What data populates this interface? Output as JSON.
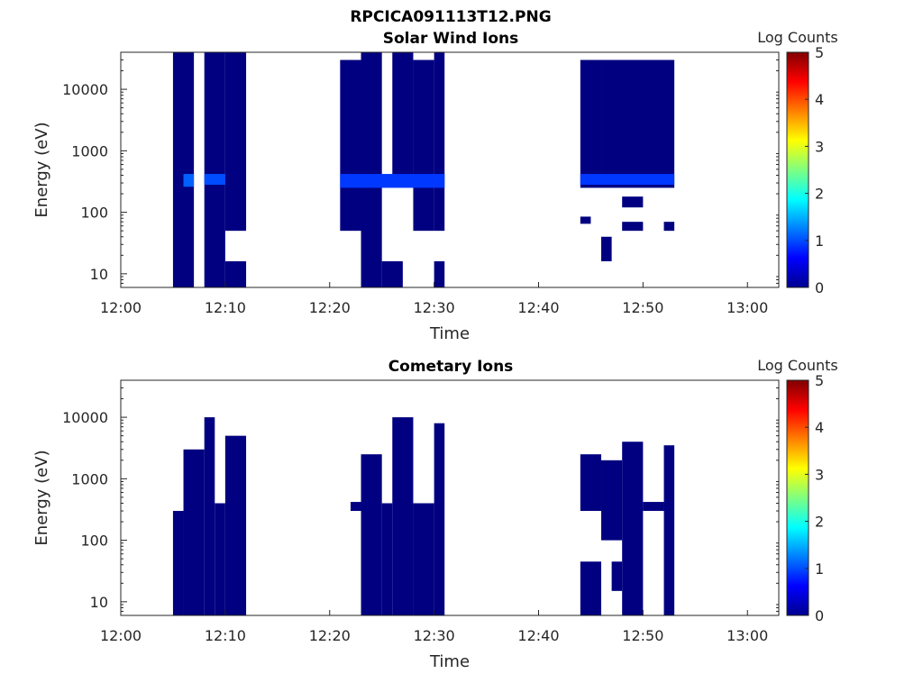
{
  "figure_title": "RPCICA091113T12.PNG",
  "chart_data": [
    {
      "type": "heatmap",
      "title": "Solar Wind Ions",
      "xlabel": "Time",
      "ylabel": "Energy (eV)",
      "x_ticks": [
        "12:00",
        "12:10",
        "12:20",
        "12:30",
        "12:40",
        "12:50",
        "13:00"
      ],
      "xlim": [
        "12:00",
        "13:03"
      ],
      "y_scale": "log",
      "y_ticks": [
        "10",
        "100",
        "1000",
        "10000"
      ],
      "ylim": [
        6,
        40000
      ],
      "colorbar": {
        "label": "Log Counts",
        "range": [
          0,
          5
        ],
        "ticks": [
          "0",
          "1",
          "2",
          "3",
          "4",
          "5"
        ],
        "colormap": "jet"
      },
      "cells": [
        {
          "t0": "12:05",
          "t1": "12:07",
          "e0": 6,
          "e1": 40000,
          "value": 0
        },
        {
          "t0": "12:08",
          "t1": "12:10",
          "e0": 6,
          "e1": 40000,
          "value": 0
        },
        {
          "t0": "12:10",
          "t1": "12:12",
          "e0": 6,
          "e1": 16,
          "value": 0
        },
        {
          "t0": "12:10",
          "t1": "12:12",
          "e0": 50,
          "e1": 40000,
          "value": 0
        },
        {
          "t0": "12:06",
          "t1": "12:07",
          "e0": 260,
          "e1": 420,
          "value": 1.1
        },
        {
          "t0": "12:08",
          "t1": "12:10",
          "e0": 280,
          "e1": 420,
          "value": 1.0
        },
        {
          "t0": "12:21",
          "t1": "12:23",
          "e0": 50,
          "e1": 30000,
          "value": 0
        },
        {
          "t0": "12:23",
          "t1": "12:25",
          "e0": 6,
          "e1": 40000,
          "value": 0
        },
        {
          "t0": "12:25",
          "t1": "12:27",
          "e0": 6,
          "e1": 16,
          "value": 0
        },
        {
          "t0": "12:26",
          "t1": "12:28",
          "e0": 400,
          "e1": 40000,
          "value": 0
        },
        {
          "t0": "12:28",
          "t1": "12:30",
          "e0": 50,
          "e1": 30000,
          "value": 0
        },
        {
          "t0": "12:30",
          "t1": "12:31",
          "e0": 6,
          "e1": 16,
          "value": 0
        },
        {
          "t0": "12:30",
          "t1": "12:31",
          "e0": 50,
          "e1": 40000,
          "value": 0
        },
        {
          "t0": "12:21",
          "t1": "12:31",
          "e0": 250,
          "e1": 420,
          "value": 0.9
        },
        {
          "t0": "12:44",
          "t1": "12:46",
          "e0": 250,
          "e1": 30000,
          "value": 0
        },
        {
          "t0": "12:44",
          "t1": "12:45",
          "e0": 65,
          "e1": 85,
          "value": 0
        },
        {
          "t0": "12:46",
          "t1": "12:47",
          "e0": 16,
          "e1": 40,
          "value": 0
        },
        {
          "t0": "12:46",
          "t1": "12:53",
          "e0": 250,
          "e1": 30000,
          "value": 0
        },
        {
          "t0": "12:48",
          "t1": "12:50",
          "e0": 50,
          "e1": 70,
          "value": 0
        },
        {
          "t0": "12:48",
          "t1": "12:50",
          "e0": 120,
          "e1": 180,
          "value": 0
        },
        {
          "t0": "12:52",
          "t1": "12:53",
          "e0": 50,
          "e1": 70,
          "value": 0
        },
        {
          "t0": "12:44",
          "t1": "12:53",
          "e0": 280,
          "e1": 420,
          "value": 0.9
        }
      ]
    },
    {
      "type": "heatmap",
      "title": "Cometary Ions",
      "xlabel": "Time",
      "ylabel": "Energy (eV)",
      "x_ticks": [
        "12:00",
        "12:10",
        "12:20",
        "12:30",
        "12:40",
        "12:50",
        "13:00"
      ],
      "xlim": [
        "12:00",
        "13:03"
      ],
      "y_scale": "log",
      "y_ticks": [
        "10",
        "100",
        "1000",
        "10000"
      ],
      "ylim": [
        6,
        40000
      ],
      "colorbar": {
        "label": "Log Counts",
        "range": [
          0,
          5
        ],
        "ticks": [
          "0",
          "1",
          "2",
          "3",
          "4",
          "5"
        ],
        "colormap": "jet"
      },
      "cells": [
        {
          "t0": "12:05",
          "t1": "12:06",
          "e0": 6,
          "e1": 300,
          "value": 0
        },
        {
          "t0": "12:06",
          "t1": "12:08",
          "e0": 6,
          "e1": 3000,
          "value": 0
        },
        {
          "t0": "12:08",
          "t1": "12:09",
          "e0": 6,
          "e1": 10000,
          "value": 0
        },
        {
          "t0": "12:09",
          "t1": "12:10",
          "e0": 6,
          "e1": 400,
          "value": 0
        },
        {
          "t0": "12:10",
          "t1": "12:12",
          "e0": 6,
          "e1": 5000,
          "value": 0
        },
        {
          "t0": "12:22",
          "t1": "12:23",
          "e0": 300,
          "e1": 420,
          "value": 0
        },
        {
          "t0": "12:23",
          "t1": "12:25",
          "e0": 6,
          "e1": 2500,
          "value": 0
        },
        {
          "t0": "12:25",
          "t1": "12:26",
          "e0": 6,
          "e1": 400,
          "value": 0
        },
        {
          "t0": "12:26",
          "t1": "12:28",
          "e0": 6,
          "e1": 10000,
          "value": 0
        },
        {
          "t0": "12:28",
          "t1": "12:30",
          "e0": 6,
          "e1": 400,
          "value": 0
        },
        {
          "t0": "12:30",
          "t1": "12:31",
          "e0": 6,
          "e1": 8000,
          "value": 0
        },
        {
          "t0": "12:44",
          "t1": "12:46",
          "e0": 6,
          "e1": 45,
          "value": 0
        },
        {
          "t0": "12:44",
          "t1": "12:46",
          "e0": 300,
          "e1": 2500,
          "value": 0
        },
        {
          "t0": "12:46",
          "t1": "12:48",
          "e0": 100,
          "e1": 2000,
          "value": 0
        },
        {
          "t0": "12:47",
          "t1": "12:48",
          "e0": 15,
          "e1": 45,
          "value": 0
        },
        {
          "t0": "12:48",
          "t1": "12:50",
          "e0": 6,
          "e1": 4000,
          "value": 0
        },
        {
          "t0": "12:50",
          "t1": "12:52",
          "e0": 300,
          "e1": 420,
          "value": 0
        },
        {
          "t0": "12:52",
          "t1": "12:53",
          "e0": 6,
          "e1": 3500,
          "value": 0
        }
      ]
    }
  ]
}
